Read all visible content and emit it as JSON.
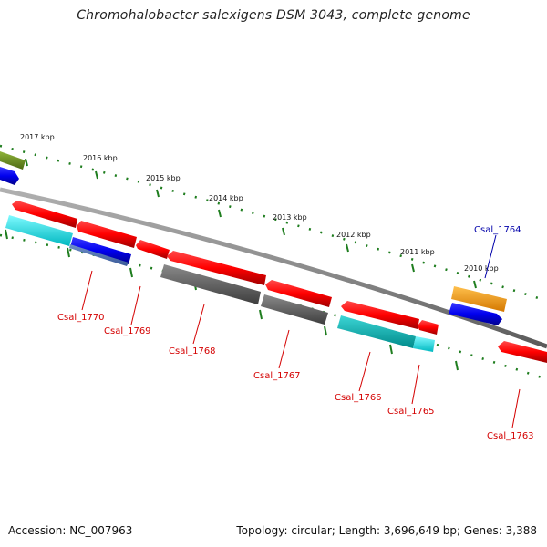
{
  "title": "Chromohalobacter salexigens DSM 3043, complete genome",
  "footer": {
    "accession": "Accession: NC_007963",
    "topology": "Topology: circular; Length: 3,696,649 bp; Genes: 3,388"
  },
  "colors": {
    "backbone": "#8c8c8c",
    "tick": "#1e7d1e",
    "label_red": "#d40000",
    "label_blue": "#0000aa"
  },
  "scale_ticks": [
    {
      "kbp": 2017,
      "label": "2017 kbp"
    },
    {
      "kbp": 2016,
      "label": "2016 kbp"
    },
    {
      "kbp": 2015,
      "label": "2015 kbp"
    },
    {
      "kbp": 2014,
      "label": "2014 kbp"
    },
    {
      "kbp": 2013,
      "label": "2013 kbp"
    },
    {
      "kbp": 2012,
      "label": "2012 kbp"
    },
    {
      "kbp": 2011,
      "label": "2011 kbp"
    },
    {
      "kbp": 2010,
      "label": "2010 kbp"
    }
  ],
  "genes": [
    {
      "label": "Csal_1770",
      "color": "#ff0000",
      "strand": "plus"
    },
    {
      "label": "Csal_1769",
      "color": "#ff0000",
      "strand": "plus"
    },
    {
      "label": "Csal_1768",
      "color": "#ff0000",
      "strand": "plus"
    },
    {
      "label": "Csal_1767",
      "color": "#ff0000",
      "strand": "plus"
    },
    {
      "label": "Csal_1766",
      "color": "#ff0000",
      "strand": "plus"
    },
    {
      "label": "Csal_1765",
      "color": "#ff0000",
      "strand": "plus"
    },
    {
      "label": "Csal_1764",
      "color": "#0000ee",
      "strand": "minus"
    },
    {
      "label": "Csal_1763",
      "color": "#ff0000",
      "strand": "plus"
    }
  ],
  "feature_colors": {
    "cds_red": "#ff0000",
    "cds_blue": "#0000ee",
    "olive": "#6b8e23",
    "cyan": "#00e5ee",
    "teal": "#00b2b2",
    "gray": "#666666",
    "orange": "#ff9900"
  }
}
